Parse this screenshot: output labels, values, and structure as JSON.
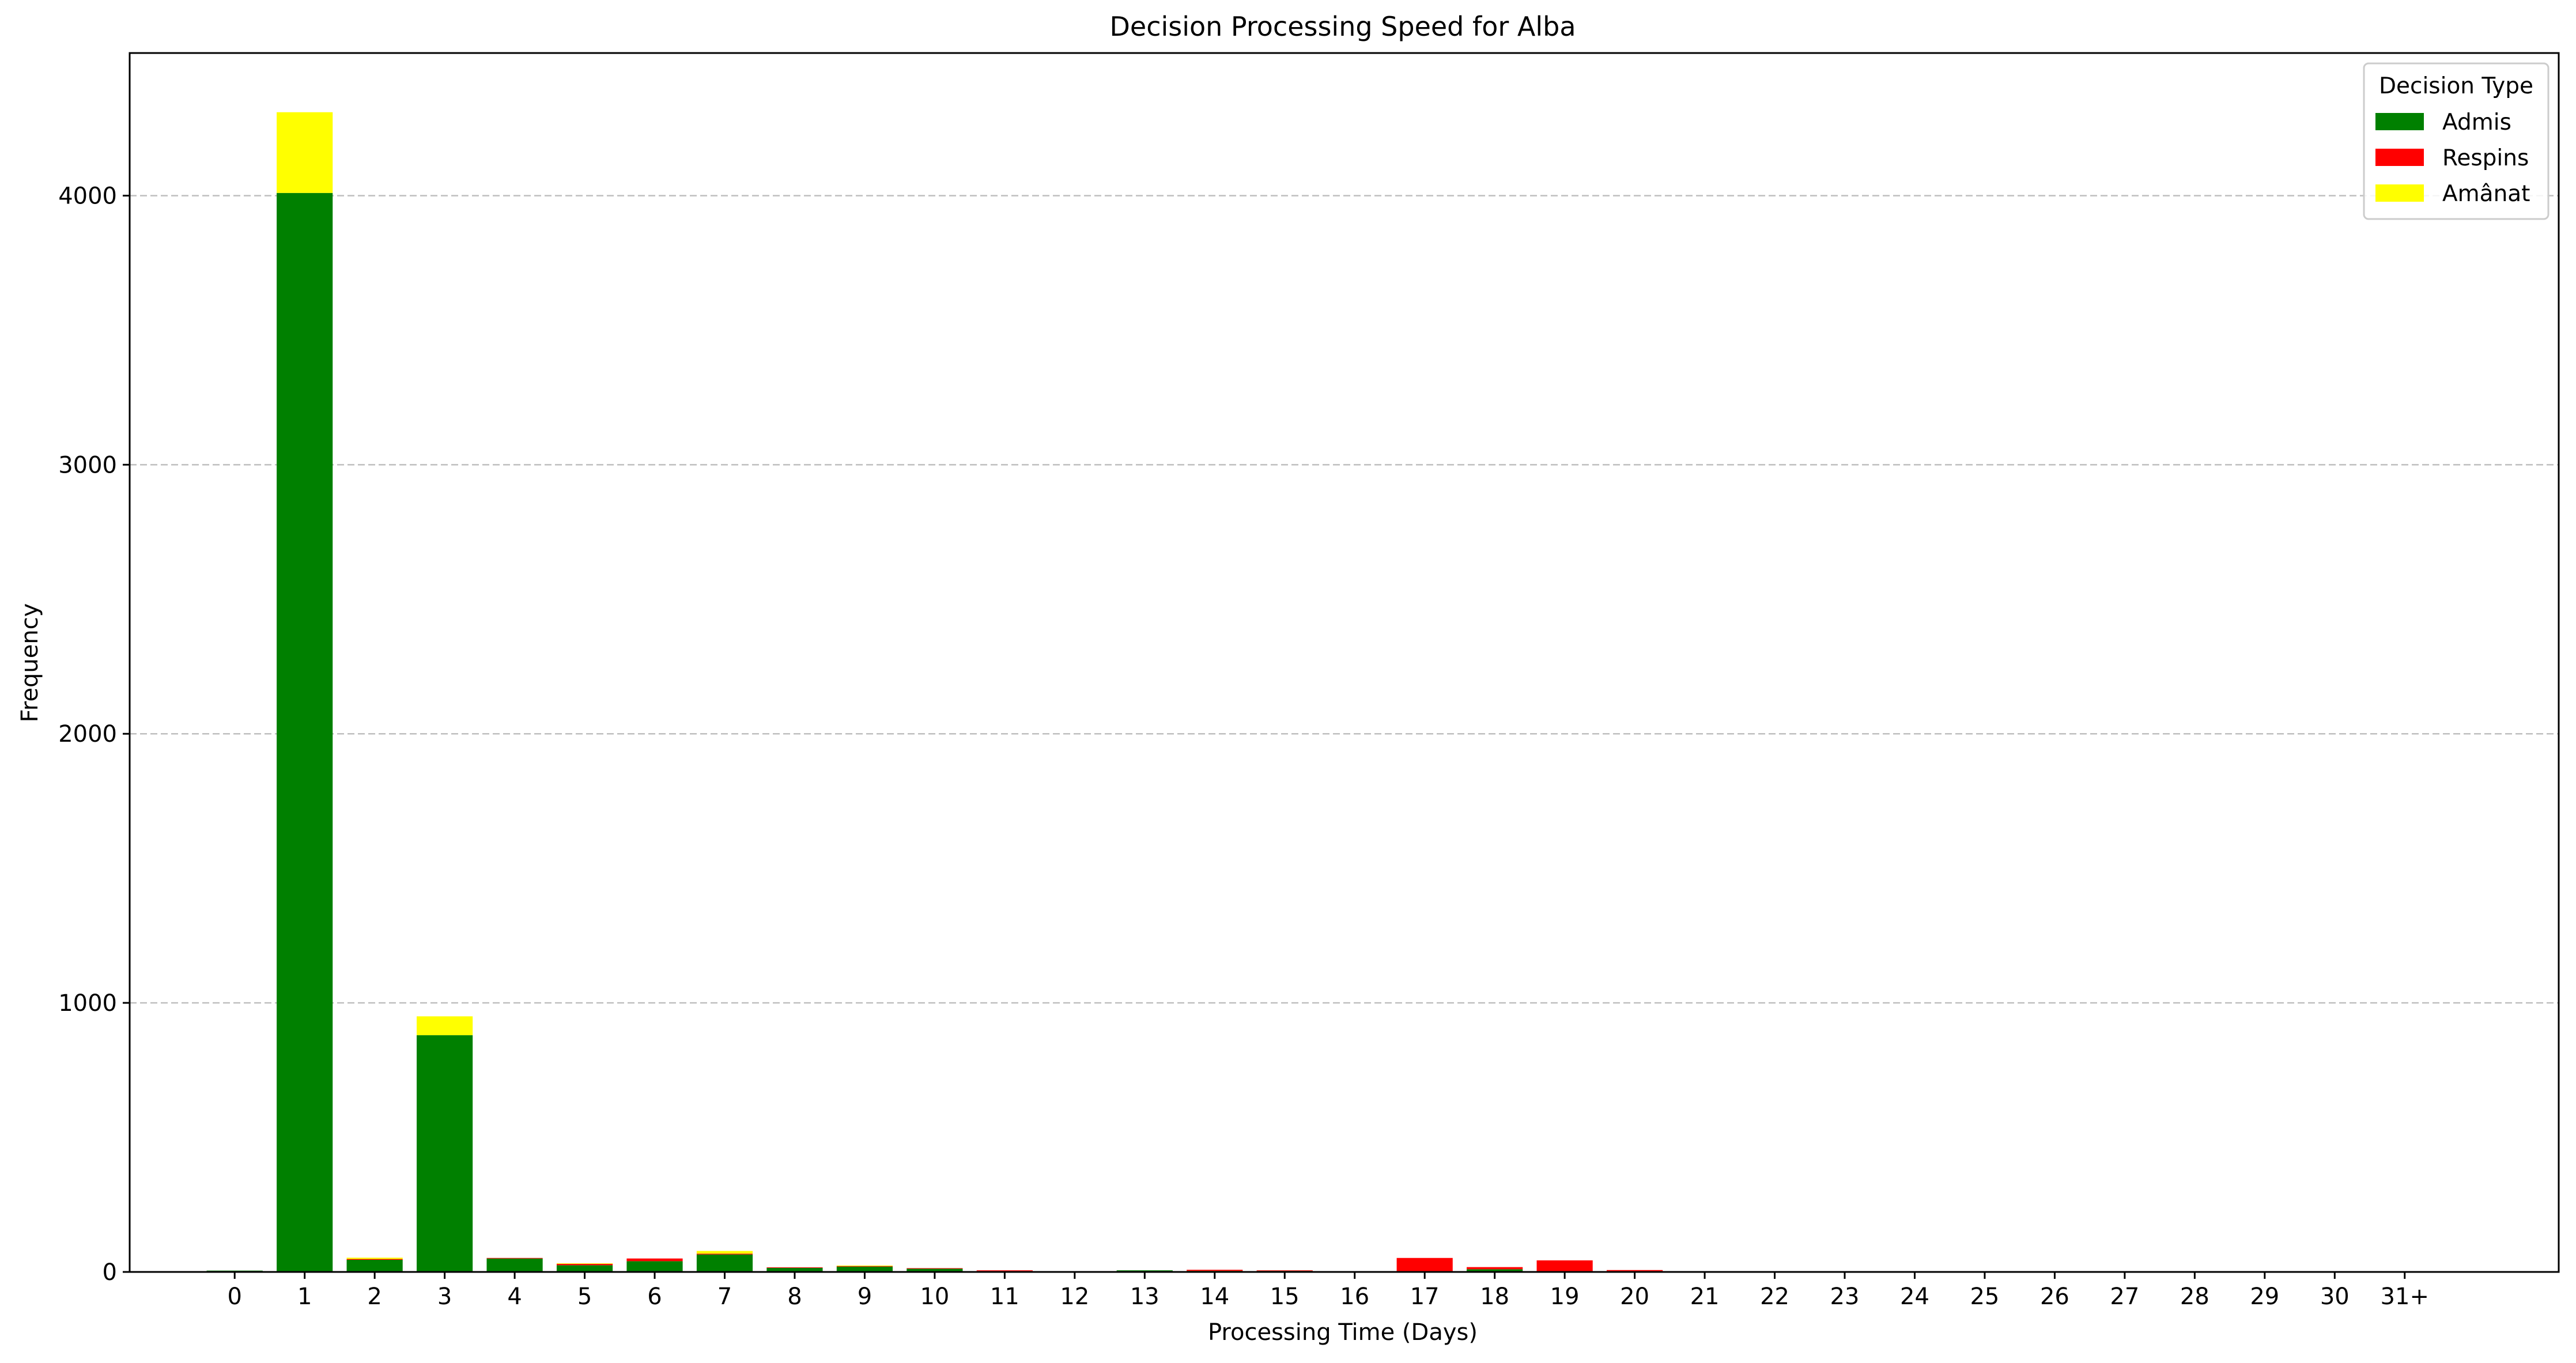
{
  "chart_data": {
    "type": "bar",
    "stacked": true,
    "title": "Decision Processing Speed for Alba",
    "xlabel": "Processing Time (Days)",
    "ylabel": "Frequency",
    "ylim": [
      0,
      4530
    ],
    "yticks": [
      0,
      1000,
      2000,
      3000,
      4000
    ],
    "grid": "horizontal dashed",
    "legend": {
      "title": "Decision Type",
      "placement": "top-right"
    },
    "categories": [
      "0",
      "1",
      "2",
      "3",
      "4",
      "5",
      "6",
      "7",
      "8",
      "9",
      "10",
      "11",
      "12",
      "13",
      "14",
      "15",
      "16",
      "17",
      "18",
      "19",
      "20",
      "21",
      "22",
      "23",
      "24",
      "25",
      "26",
      "27",
      "28",
      "29",
      "30",
      "31+"
    ],
    "series": [
      {
        "name": "Admis",
        "color": "#008000",
        "values": [
          5,
          4010,
          45,
          880,
          50,
          25,
          40,
          65,
          15,
          20,
          12,
          3,
          1,
          6,
          4,
          4,
          2,
          2,
          10,
          3,
          2,
          0,
          0,
          0,
          0,
          0,
          0,
          0,
          0,
          0,
          0,
          0
        ]
      },
      {
        "name": "Respins",
        "color": "#ff0000",
        "values": [
          0,
          0,
          3,
          0,
          2,
          5,
          10,
          3,
          2,
          2,
          2,
          3,
          1,
          0,
          4,
          2,
          1,
          50,
          8,
          40,
          5,
          0,
          0,
          0,
          0,
          0,
          0,
          0,
          0,
          0,
          0,
          0
        ]
      },
      {
        "name": "Amânat",
        "color": "#ffff00",
        "values": [
          0,
          300,
          5,
          70,
          0,
          2,
          0,
          10,
          0,
          2,
          0,
          0,
          0,
          0,
          0,
          0,
          0,
          0,
          0,
          0,
          0,
          0,
          0,
          0,
          0,
          0,
          0,
          0,
          0,
          0,
          0,
          0
        ]
      }
    ]
  }
}
